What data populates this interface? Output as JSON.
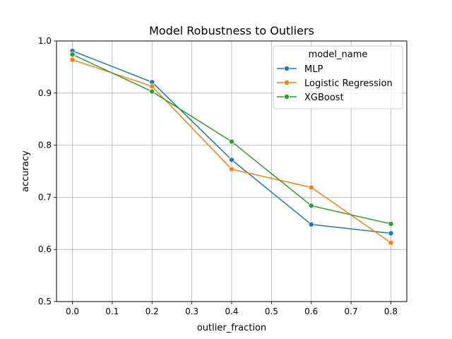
{
  "chart_data": {
    "type": "line",
    "title": "Model Robustness to Outliers",
    "xlabel": "outlier_fraction",
    "ylabel": "accuracy",
    "xlim": [
      -0.04,
      0.84
    ],
    "ylim": [
      0.5,
      1.0
    ],
    "xticks": [
      0.0,
      0.1,
      0.2,
      0.3,
      0.4,
      0.5,
      0.6,
      0.7,
      0.8
    ],
    "xtick_labels": [
      "0.0",
      "0.1",
      "0.2",
      "0.3",
      "0.4",
      "0.5",
      "0.6",
      "0.7",
      "0.8"
    ],
    "yticks": [
      0.5,
      0.6,
      0.7,
      0.8,
      0.9,
      1.0
    ],
    "ytick_labels": [
      "0.5",
      "0.6",
      "0.7",
      "0.8",
      "0.9",
      "1.0"
    ],
    "grid": true,
    "legend": {
      "title": "model_name",
      "placement": "upper right"
    },
    "x": [
      0.0,
      0.2,
      0.4,
      0.6,
      0.8
    ],
    "series": [
      {
        "name": "MLP",
        "color": "#1f77b4",
        "values": [
          0.981,
          0.921,
          0.772,
          0.648,
          0.631
        ]
      },
      {
        "name": "Logistic Regression",
        "color": "#ff7f0e",
        "values": [
          0.964,
          0.913,
          0.754,
          0.719,
          0.613
        ]
      },
      {
        "name": "XGBoost",
        "color": "#2ca02c",
        "values": [
          0.974,
          0.903,
          0.807,
          0.684,
          0.649
        ]
      }
    ]
  }
}
